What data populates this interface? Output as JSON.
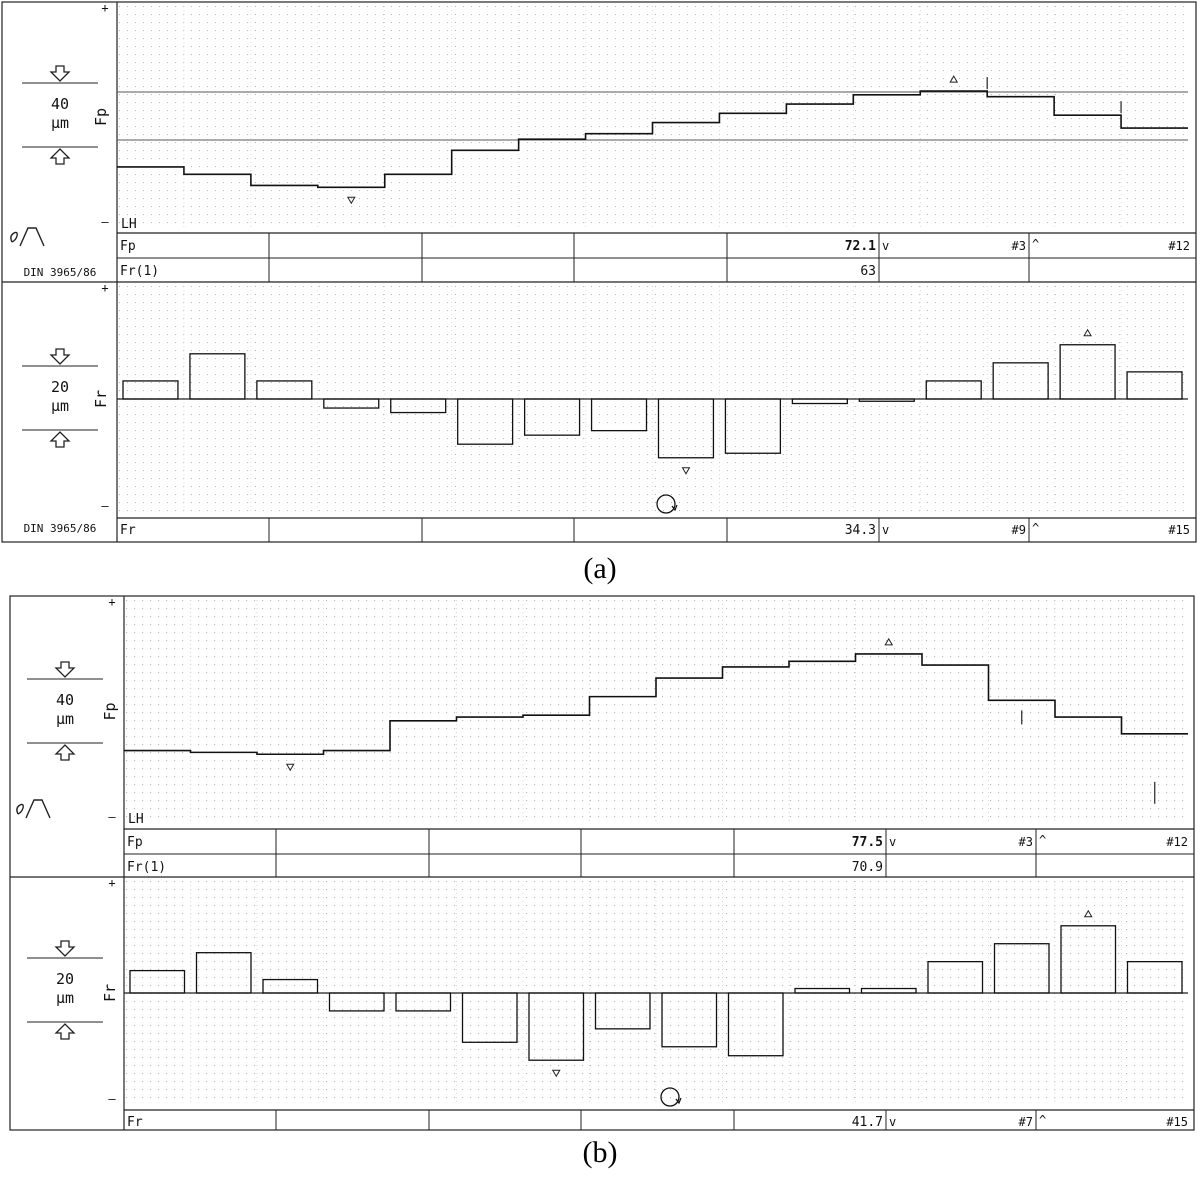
{
  "figures": [
    {
      "caption": "(a)",
      "fp_panel": {
        "axis_label": "Fp",
        "scale_value": "40",
        "scale_unit": "µm",
        "lh_label": "LH",
        "plus_sign": "+",
        "minus_sign": "–",
        "row1_label": "Fp",
        "row1_value": "72.1",
        "row1_marker": "v",
        "row1_index": "#3",
        "row1_caret": "^",
        "row1_last": "#12",
        "row2_label": "Fr(1)",
        "row2_value": "63",
        "standard": "DIN 3965/86"
      },
      "fr_panel": {
        "axis_label": "Fr",
        "scale_value": "20",
        "scale_unit": "µm",
        "plus_sign": "+",
        "minus_sign": "–",
        "row_label": "Fr",
        "row_value": "34.3",
        "row_marker": "v",
        "row_index": "#9",
        "row_caret": "^",
        "row_last": "#15",
        "standard": "DIN 3965/86"
      }
    },
    {
      "caption": "(b)",
      "fp_panel": {
        "axis_label": "Fp",
        "scale_value": "40",
        "scale_unit": "µm",
        "lh_label": "LH",
        "plus_sign": "+",
        "minus_sign": "–",
        "row1_label": "Fp",
        "row1_value": "77.5",
        "row1_marker": "v",
        "row1_index": "#3",
        "row1_caret": "^",
        "row1_last": "#12",
        "row2_label": "Fr(1)",
        "row2_value": "70.9"
      },
      "fr_panel": {
        "axis_label": "Fr",
        "scale_value": "20",
        "scale_unit": "µm",
        "plus_sign": "+",
        "minus_sign": "–",
        "row_label": "Fr",
        "row_value": "41.7",
        "row_marker": "v",
        "row_index": "#7",
        "row_caret": "^",
        "row_last": "#15"
      }
    }
  ],
  "chart_data": [
    {
      "type": "line",
      "title": "(a) Fp",
      "x": [
        1,
        2,
        3,
        4,
        5,
        6,
        7,
        8,
        9,
        10,
        11,
        12,
        13,
        14,
        15,
        16
      ],
      "values": [
        -27,
        -31,
        -37,
        -38,
        -31,
        -18,
        -12,
        -9,
        -3,
        2,
        7,
        12,
        14,
        11,
        1,
        -6
      ],
      "ylim": [
        -60,
        60
      ]
    },
    {
      "type": "bar",
      "title": "(a) Fr",
      "x": [
        1,
        2,
        3,
        4,
        5,
        6,
        7,
        8,
        9,
        10,
        11,
        12,
        13,
        14,
        15,
        16
      ],
      "values": [
        4,
        10,
        4,
        -2,
        -3,
        -10,
        -8,
        -7,
        -13,
        -12,
        -1,
        -0.5,
        4,
        8,
        12,
        6
      ],
      "ylim": [
        -25,
        25
      ]
    },
    {
      "type": "line",
      "title": "(b) Fp",
      "x": [
        1,
        2,
        3,
        4,
        5,
        6,
        7,
        8,
        9,
        10,
        11,
        12,
        13,
        14,
        15,
        16
      ],
      "values": [
        -21,
        -22,
        -23,
        -21,
        -5,
        -3,
        -2,
        8,
        18,
        24,
        27,
        31,
        25,
        6,
        -3,
        -12
      ],
      "ylim": [
        -60,
        60
      ]
    },
    {
      "type": "bar",
      "title": "(b) Fr",
      "x": [
        1,
        2,
        3,
        4,
        5,
        6,
        7,
        8,
        9,
        10,
        11,
        12,
        13,
        14,
        15,
        16
      ],
      "values": [
        5,
        9,
        3,
        -4,
        -4,
        -11,
        -15,
        -8,
        -12,
        -14,
        1,
        1,
        7,
        11,
        15,
        7
      ],
      "ylim": [
        -25,
        25
      ]
    }
  ]
}
